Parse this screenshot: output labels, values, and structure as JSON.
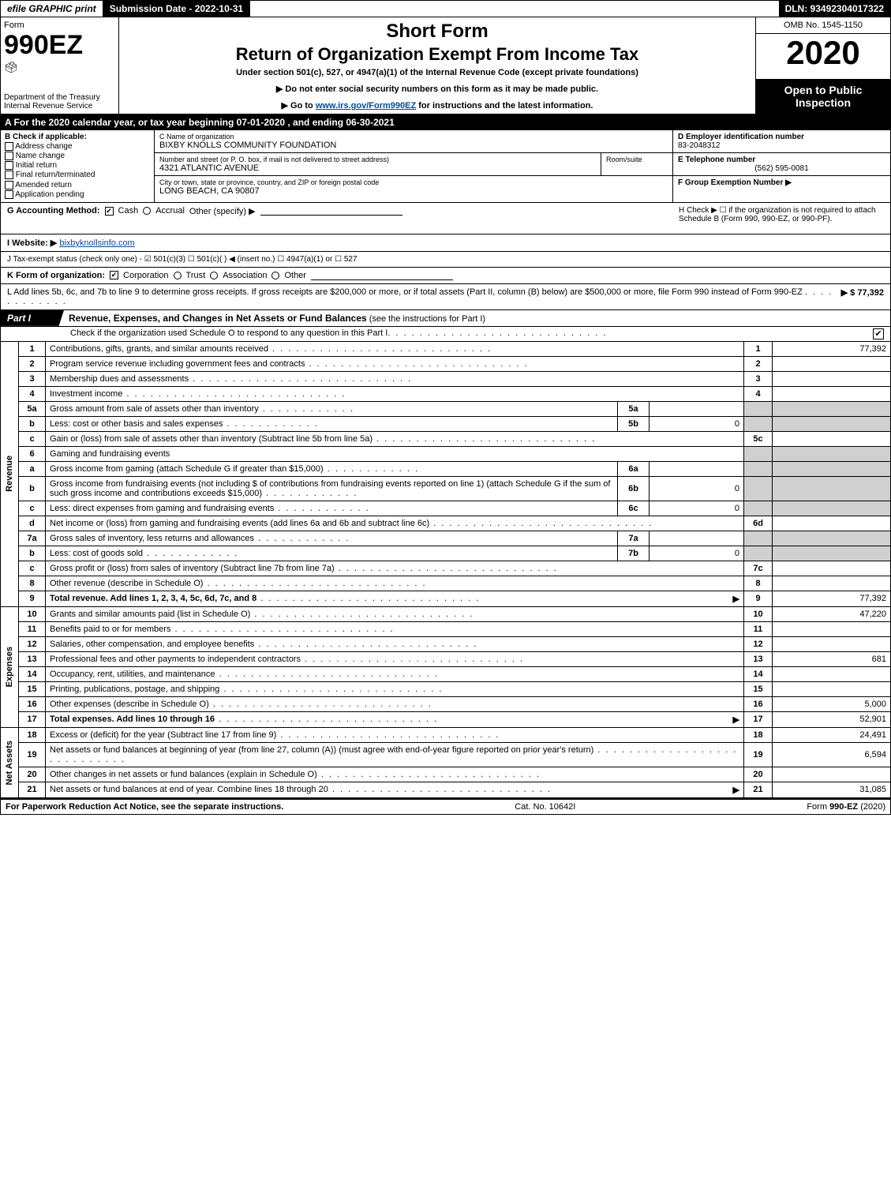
{
  "top_bar": {
    "efile": "efile GRAPHIC print",
    "submission": "Submission Date - 2022-10-31",
    "dln": "DLN: 93492304017322"
  },
  "header": {
    "form_word": "Form",
    "form_number": "990EZ",
    "dept": "Department of the Treasury",
    "irs": "Internal Revenue Service",
    "title_short": "Short Form",
    "title_main": "Return of Organization Exempt From Income Tax",
    "under": "Under section 501(c), 527, or 4947(a)(1) of the Internal Revenue Code (except private foundations)",
    "notice1": "▶ Do not enter social security numbers on this form as it may be made public.",
    "notice2_prefix": "▶ Go to ",
    "notice2_link": "www.irs.gov/Form990EZ",
    "notice2_suffix": " for instructions and the latest information.",
    "omb": "OMB No. 1545-1150",
    "year": "2020",
    "open_public": "Open to Public Inspection"
  },
  "line_a": "A For the 2020 calendar year, or tax year beginning 07-01-2020 , and ending 06-30-2021",
  "box_b": {
    "header": "B Check if applicable:",
    "opts": [
      "Address change",
      "Name change",
      "Initial return",
      "Final return/terminated",
      "Amended return",
      "Application pending"
    ]
  },
  "box_c": {
    "name_label": "C Name of organization",
    "name_value": "BIXBY KNOLLS COMMUNITY FOUNDATION",
    "street_label": "Number and street (or P. O. box, if mail is not delivered to street address)",
    "street_value": "4321 ATLANTIC AVENUE",
    "room_label": "Room/suite",
    "city_label": "City or town, state or province, country, and ZIP or foreign postal code",
    "city_value": "LONG BEACH, CA  90807"
  },
  "box_d": {
    "ein_label": "D Employer identification number",
    "ein_value": "83-2048312",
    "phone_label": "E Telephone number",
    "phone_value": "(562) 595-0081",
    "group_label": "F Group Exemption Number  ▶"
  },
  "line_g": {
    "prefix": "G Accounting Method:",
    "cash": "Cash",
    "accrual": "Accrual",
    "other": "Other (specify) ▶",
    "h_text": "H  Check ▶  ☐  if the organization is not required to attach Schedule B (Form 990, 990-EZ, or 990-PF)."
  },
  "line_i": {
    "prefix": "I Website: ▶",
    "value": "bixbyknollsinfo.com"
  },
  "line_j": "J Tax-exempt status (check only one) - ☑ 501(c)(3)  ☐ 501(c)(  ) ◀ (insert no.)  ☐ 4947(a)(1) or  ☐ 527",
  "line_k": {
    "prefix": "K Form of organization:",
    "corp": "Corporation",
    "trust": "Trust",
    "assoc": "Association",
    "other": "Other"
  },
  "line_l": {
    "text": "L Add lines 5b, 6c, and 7b to line 9 to determine gross receipts. If gross receipts are $200,000 or more, or if total assets (Part II, column (B) below) are $500,000 or more, file Form 990 instead of Form 990-EZ",
    "arrow": "▶ $",
    "value": "77,392"
  },
  "part1": {
    "tab": "Part I",
    "title": "Revenue, Expenses, and Changes in Net Assets or Fund Balances",
    "title_suffix": " (see the instructions for Part I)",
    "check_o": "Check if the organization used Schedule O to respond to any question in this Part I",
    "check_o_checked": true
  },
  "section_labels": {
    "revenue": "Revenue",
    "expenses": "Expenses",
    "netassets": "Net Assets"
  },
  "revenue": [
    {
      "n": "1",
      "desc": "Contributions, gifts, grants, and similar amounts received",
      "num": "1",
      "amount": "77,392"
    },
    {
      "n": "2",
      "desc": "Program service revenue including government fees and contracts",
      "num": "2",
      "amount": ""
    },
    {
      "n": "3",
      "desc": "Membership dues and assessments",
      "num": "3",
      "amount": ""
    },
    {
      "n": "4",
      "desc": "Investment income",
      "num": "4",
      "amount": ""
    },
    {
      "n": "5a",
      "desc": "Gross amount from sale of assets other than inventory",
      "sub_n": "5a",
      "sub_v": "",
      "shade_right": true
    },
    {
      "n": "b",
      "desc": "Less: cost or other basis and sales expenses",
      "sub_n": "5b",
      "sub_v": "0",
      "shade_right": true
    },
    {
      "n": "c",
      "desc": "Gain or (loss) from sale of assets other than inventory (Subtract line 5b from line 5a)",
      "num": "5c",
      "amount": ""
    },
    {
      "n": "6",
      "desc": "Gaming and fundraising events",
      "shade_right": true,
      "no_num": true
    },
    {
      "n": "a",
      "desc": "Gross income from gaming (attach Schedule G if greater than $15,000)",
      "sub_n": "6a",
      "sub_v": "",
      "shade_right": true
    },
    {
      "n": "b",
      "desc": "Gross income from fundraising events (not including $                         of contributions from fundraising events reported on line 1) (attach Schedule G if the sum of such gross income and contributions exceeds $15,000)",
      "sub_n": "6b",
      "sub_v": "0",
      "shade_right": true
    },
    {
      "n": "c",
      "desc": "Less: direct expenses from gaming and fundraising events",
      "sub_n": "6c",
      "sub_v": "0",
      "shade_right": true
    },
    {
      "n": "d",
      "desc": "Net income or (loss) from gaming and fundraising events (add lines 6a and 6b and subtract line 6c)",
      "num": "6d",
      "amount": ""
    },
    {
      "n": "7a",
      "desc": "Gross sales of inventory, less returns and allowances",
      "sub_n": "7a",
      "sub_v": "",
      "shade_right": true
    },
    {
      "n": "b",
      "desc": "Less: cost of goods sold",
      "sub_n": "7b",
      "sub_v": "0",
      "shade_right": true
    },
    {
      "n": "c",
      "desc": "Gross profit or (loss) from sales of inventory (Subtract line 7b from line 7a)",
      "num": "7c",
      "amount": ""
    },
    {
      "n": "8",
      "desc": "Other revenue (describe in Schedule O)",
      "num": "8",
      "amount": ""
    },
    {
      "n": "9",
      "desc": "Total revenue. Add lines 1, 2, 3, 4, 5c, 6d, 7c, and 8",
      "num": "9",
      "amount": "77,392",
      "bold": true,
      "arrow": true
    }
  ],
  "expenses": [
    {
      "n": "10",
      "desc": "Grants and similar amounts paid (list in Schedule O)",
      "num": "10",
      "amount": "47,220"
    },
    {
      "n": "11",
      "desc": "Benefits paid to or for members",
      "num": "11",
      "amount": ""
    },
    {
      "n": "12",
      "desc": "Salaries, other compensation, and employee benefits",
      "num": "12",
      "amount": ""
    },
    {
      "n": "13",
      "desc": "Professional fees and other payments to independent contractors",
      "num": "13",
      "amount": "681"
    },
    {
      "n": "14",
      "desc": "Occupancy, rent, utilities, and maintenance",
      "num": "14",
      "amount": ""
    },
    {
      "n": "15",
      "desc": "Printing, publications, postage, and shipping",
      "num": "15",
      "amount": ""
    },
    {
      "n": "16",
      "desc": "Other expenses (describe in Schedule O)",
      "num": "16",
      "amount": "5,000"
    },
    {
      "n": "17",
      "desc": "Total expenses. Add lines 10 through 16",
      "num": "17",
      "amount": "52,901",
      "bold": true,
      "arrow": true
    }
  ],
  "netassets": [
    {
      "n": "18",
      "desc": "Excess or (deficit) for the year (Subtract line 17 from line 9)",
      "num": "18",
      "amount": "24,491"
    },
    {
      "n": "19",
      "desc": "Net assets or fund balances at beginning of year (from line 27, column (A)) (must agree with end-of-year figure reported on prior year's return)",
      "num": "19",
      "amount": "6,594"
    },
    {
      "n": "20",
      "desc": "Other changes in net assets or fund balances (explain in Schedule O)",
      "num": "20",
      "amount": ""
    },
    {
      "n": "21",
      "desc": "Net assets or fund balances at end of year. Combine lines 18 through 20",
      "num": "21",
      "amount": "31,085",
      "arrow": true
    }
  ],
  "footer": {
    "left": "For Paperwork Reduction Act Notice, see the separate instructions.",
    "center": "Cat. No. 10642I",
    "right": "Form 990-EZ (2020)"
  }
}
